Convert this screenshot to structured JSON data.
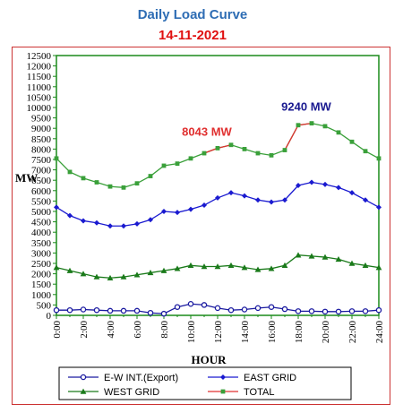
{
  "header": {
    "title": "Daily Load Curve",
    "date": "14-11-2021"
  },
  "chart_data": {
    "type": "line",
    "title": "Daily Load Curve",
    "subtitle": "14-11-2021",
    "xlabel": "HOUR",
    "ylabel": "MW",
    "xlim": [
      0,
      24
    ],
    "ylim": [
      0,
      12500
    ],
    "grid": false,
    "legend_position": "bottom",
    "x_tick_labels": [
      "0:00",
      "2:00",
      "4:00",
      "6:00",
      "8:00",
      "10:00",
      "12:00",
      "14:00",
      "16:00",
      "18:00",
      "20:00",
      "22:00",
      "24:00"
    ],
    "y_tick_labels": [
      "0",
      "500",
      "1000",
      "1500",
      "2000",
      "2500",
      "3000",
      "3500",
      "4000",
      "4500",
      "5000",
      "5500",
      "6000",
      "6500",
      "7000",
      "7500",
      "8000",
      "8500",
      "9000",
      "9500",
      "10000",
      "10500",
      "11000",
      "11500",
      "12000",
      "12500"
    ],
    "x": [
      0,
      1,
      2,
      3,
      4,
      5,
      6,
      7,
      8,
      9,
      10,
      11,
      12,
      13,
      14,
      15,
      16,
      17,
      18,
      19,
      20,
      21,
      22,
      23,
      24
    ],
    "series": [
      {
        "name": "E-W INT.(Export)",
        "color": "#1a1aa0",
        "marker": "circle-open",
        "values": [
          250,
          250,
          280,
          250,
          220,
          220,
          220,
          120,
          80,
          400,
          550,
          500,
          350,
          250,
          280,
          350,
          400,
          300,
          200,
          200,
          180,
          180,
          200,
          200,
          250
        ]
      },
      {
        "name": "EAST GRID",
        "color": "#1a1ad0",
        "marker": "diamond",
        "values": [
          5200,
          4800,
          4550,
          4450,
          4300,
          4300,
          4400,
          4600,
          5000,
          4950,
          5100,
          5300,
          5650,
          5900,
          5750,
          5550,
          5450,
          5550,
          6250,
          6400,
          6300,
          6150,
          5900,
          5550,
          5200
        ]
      },
      {
        "name": "WEST GRID",
        "color": "#1a7a1a",
        "marker": "triangle",
        "values": [
          2300,
          2150,
          2000,
          1850,
          1800,
          1850,
          1950,
          2050,
          2150,
          2250,
          2400,
          2350,
          2350,
          2400,
          2300,
          2200,
          2250,
          2400,
          2900,
          2850,
          2800,
          2700,
          2500,
          2400,
          2300
        ]
      },
      {
        "name": "TOTAL",
        "color": "#3aa03a",
        "line_color": "#e03030",
        "marker": "square",
        "values": [
          7550,
          6900,
          6600,
          6400,
          6200,
          6150,
          6350,
          6700,
          7200,
          7300,
          7550,
          7800,
          8043,
          8200,
          8000,
          7800,
          7700,
          7950,
          9150,
          9240,
          9100,
          8800,
          8350,
          7900,
          7550
        ]
      }
    ],
    "annotations": [
      {
        "text": "8043 MW",
        "x": 12,
        "y": 8043,
        "color": "#e03030"
      },
      {
        "text": "9240 MW",
        "x": 19,
        "y": 9240,
        "color": "#1a1a90"
      }
    ]
  }
}
